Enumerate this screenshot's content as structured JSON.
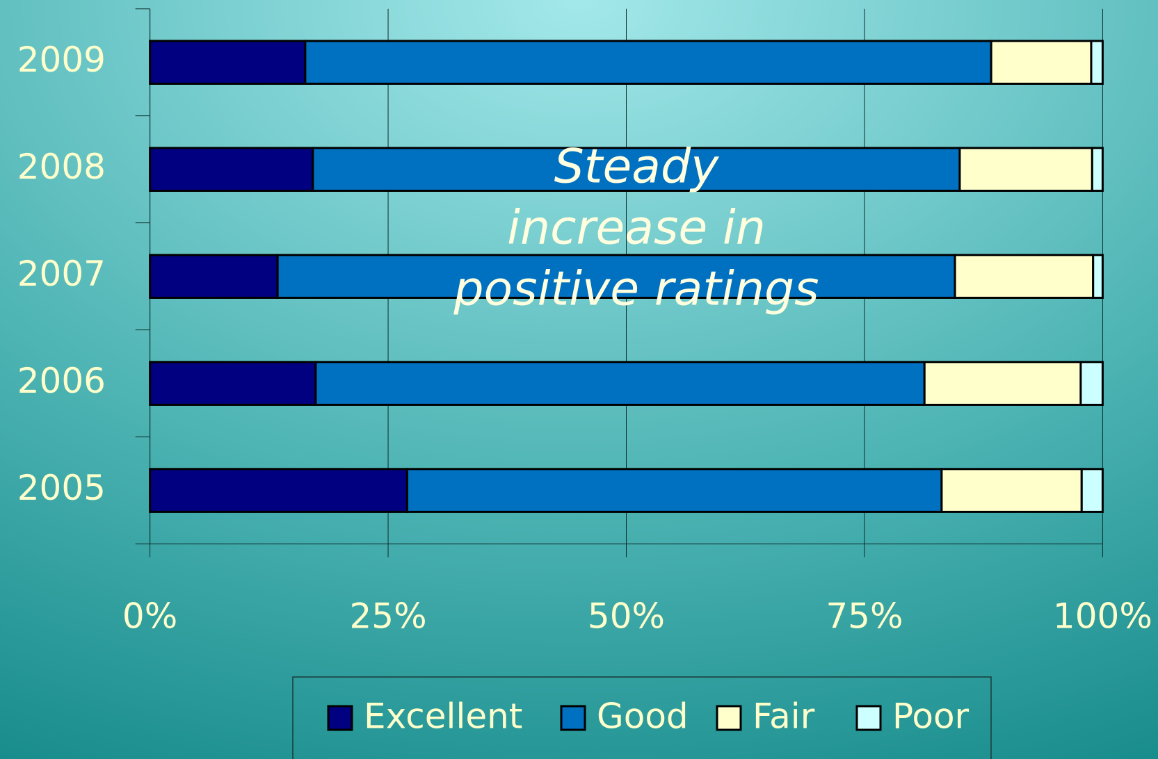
{
  "chart_data": {
    "type": "stacked-bar-horizontal",
    "annotation": [
      "Steady",
      "increase in",
      "positive ratings"
    ],
    "categories": [
      "2005",
      "2006",
      "2007",
      "2008",
      "2009"
    ],
    "series": [
      {
        "name": "Excellent",
        "color": "#000080",
        "values": [
          27.0,
          17.4,
          13.4,
          17.1,
          16.3
        ]
      },
      {
        "name": "Good",
        "color": "#0070c0",
        "values": [
          56.1,
          63.9,
          71.1,
          67.9,
          72.0
        ]
      },
      {
        "name": "Fair",
        "color": "#ffffcc",
        "values": [
          14.7,
          16.4,
          14.5,
          13.9,
          10.5
        ]
      },
      {
        "name": "Poor",
        "color": "#ccffff",
        "values": [
          2.2,
          2.3,
          1.0,
          1.1,
          1.2
        ]
      }
    ],
    "xlim": [
      0,
      100
    ],
    "xticks": [
      {
        "value": 0,
        "label": "0%"
      },
      {
        "value": 25,
        "label": "25%"
      },
      {
        "value": 50,
        "label": "50%"
      },
      {
        "value": 75,
        "label": "75%"
      },
      {
        "value": 100,
        "label": "100%"
      }
    ],
    "grid": true,
    "legend": "bottom"
  }
}
